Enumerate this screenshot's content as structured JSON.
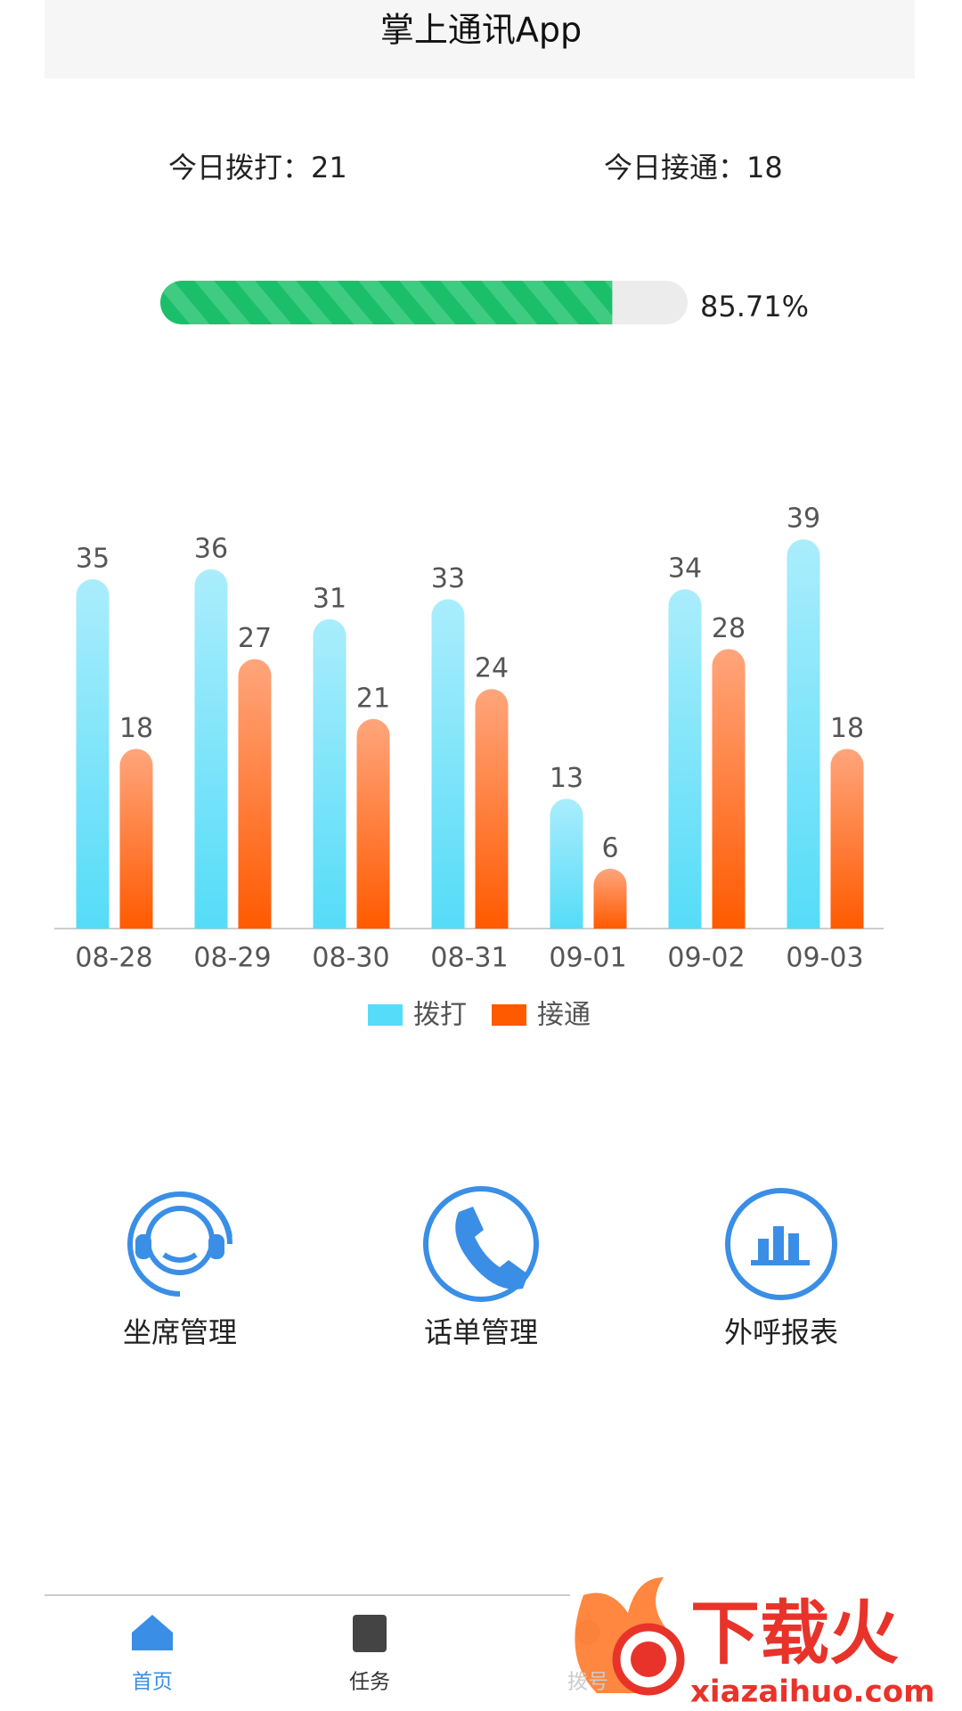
{
  "header": {
    "title": "掌上通讯App"
  },
  "stats": [
    {
      "label": "今日拨打：",
      "value": 21
    },
    {
      "label": "今日接通：",
      "value": 18
    }
  ],
  "progress": {
    "value": 85.71,
    "label": "85.71%"
  },
  "chart_data": {
    "type": "bar",
    "categories": [
      "08-28",
      "08-29",
      "08-30",
      "08-31",
      "09-01",
      "09-02",
      "09-03"
    ],
    "series": [
      {
        "name": "拨打",
        "color": "#55dcf8",
        "values": [
          35,
          36,
          31,
          33,
          13,
          34,
          39
        ]
      },
      {
        "name": "接通",
        "color": "#ff5a00",
        "values": [
          18,
          27,
          21,
          24,
          6,
          28,
          18
        ]
      }
    ]
  },
  "menu": [
    "坐席管理",
    "话单管理",
    "外呼报表"
  ],
  "tabs": [
    "首页",
    "任务",
    "拨号"
  ],
  "watermark": {
    "brand": "下载火",
    "url": "xiazaihuo.com"
  }
}
